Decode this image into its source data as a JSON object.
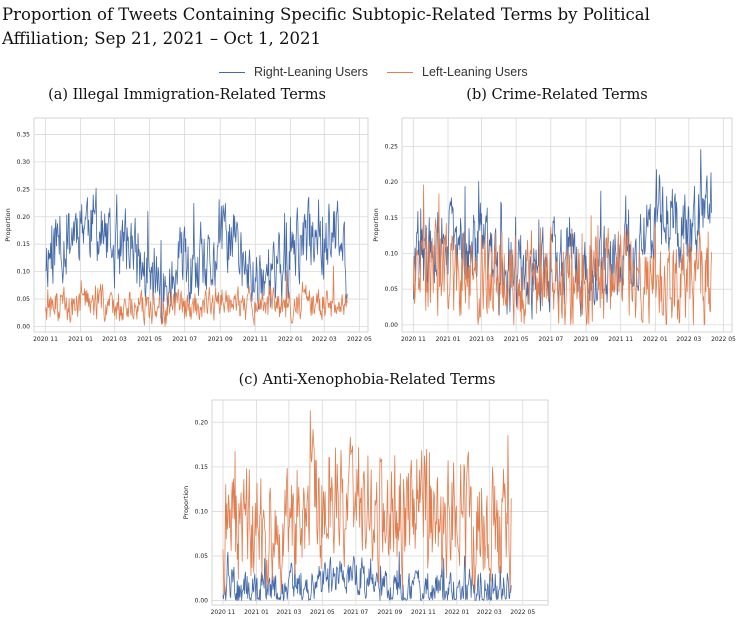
{
  "title": "Proportion of Tweets Containing Specific Subtopic-Related Terms by Political Affiliation; Sep 21, 2021 – Oct 1, 2021",
  "legend": [
    {
      "label": "Right-Leaning Users",
      "color": "#4469a8"
    },
    {
      "label": "Left-Leaning Users",
      "color": "#e27d4e"
    }
  ],
  "chart_data": [
    {
      "type": "line",
      "title": "(a) Illegal Immigration-Related Terms",
      "xlabel": "",
      "ylabel": "Proportion",
      "x_range": [
        "2020-11-01",
        "2022-04-10"
      ],
      "x_tick_labels": [
        "2020 11",
        "2021 01",
        "2021 03",
        "2021 05",
        "2021 07",
        "2021 09",
        "2021 11",
        "2022 01",
        "2022 03",
        "2022 05"
      ],
      "y_ticks": [
        0.0,
        0.05,
        0.1,
        0.15,
        0.2,
        0.25,
        0.3,
        0.35
      ],
      "y_tick_labels": [
        "0.00",
        "0.05",
        "0.10",
        "0.15",
        "0.20",
        "0.25",
        "0.30",
        "0.35"
      ],
      "ylim": [
        -0.01,
        0.38
      ],
      "grid": true,
      "series": [
        {
          "name": "Right-Leaning Users",
          "color": "#4469a8",
          "x": [
            "2020-11-01",
            "2020-11-20",
            "2020-12-10",
            "2021-01-01",
            "2021-01-20",
            "2021-02-10",
            "2021-03-01",
            "2021-03-20",
            "2021-04-10",
            "2021-05-01",
            "2021-05-20",
            "2021-06-10",
            "2021-06-25",
            "2021-07-01",
            "2021-07-20",
            "2021-08-10",
            "2021-09-01",
            "2021-09-20",
            "2021-10-10",
            "2021-10-25",
            "2021-11-10",
            "2021-12-01",
            "2021-12-20",
            "2022-01-10",
            "2022-02-01",
            "2022-02-20",
            "2022-03-01",
            "2022-03-20",
            "2022-04-10"
          ],
          "y": [
            0.13,
            0.15,
            0.16,
            0.2,
            0.19,
            0.16,
            0.13,
            0.15,
            0.12,
            0.08,
            0.07,
            0.07,
            0.12,
            0.1,
            0.08,
            0.09,
            0.15,
            0.17,
            0.11,
            0.08,
            0.1,
            0.09,
            0.1,
            0.14,
            0.16,
            0.19,
            0.15,
            0.17,
            0.11
          ]
        },
        {
          "name": "Left-Leaning Users",
          "color": "#e27d4e",
          "x": [
            "2020-11-01",
            "2020-12-10",
            "2021-01-20",
            "2021-03-01",
            "2021-04-10",
            "2021-05-20",
            "2021-07-01",
            "2021-08-10",
            "2021-09-20",
            "2021-11-01",
            "2021-12-10",
            "2022-01-20",
            "2022-03-01",
            "2022-04-10"
          ],
          "y": [
            0.04,
            0.035,
            0.045,
            0.04,
            0.035,
            0.03,
            0.035,
            0.04,
            0.045,
            0.04,
            0.035,
            0.04,
            0.045,
            0.03
          ]
        }
      ]
    },
    {
      "type": "line",
      "title": "(b) Crime-Related Terms",
      "xlabel": "",
      "ylabel": "Proportion",
      "x_range": [
        "2020-11-01",
        "2022-04-10"
      ],
      "x_tick_labels": [
        "2020 11",
        "2021 01",
        "2021 03",
        "2021 05",
        "2021 07",
        "2021 09",
        "2021 11",
        "2022 01",
        "2022 03",
        "2022 05"
      ],
      "y_ticks": [
        0.0,
        0.05,
        0.1,
        0.15,
        0.2,
        0.25
      ],
      "y_tick_labels": [
        "0.00",
        "0.05",
        "0.10",
        "0.15",
        "0.20",
        "0.25"
      ],
      "ylim": [
        -0.01,
        0.29
      ],
      "grid": true,
      "series": [
        {
          "name": "Right-Leaning Users",
          "color": "#4469a8",
          "x": [
            "2020-11-01",
            "2020-12-01",
            "2021-01-01",
            "2021-02-01",
            "2021-03-01",
            "2021-04-01",
            "2021-05-01",
            "2021-06-01",
            "2021-07-01",
            "2021-08-01",
            "2021-09-01",
            "2021-10-01",
            "2021-11-01",
            "2021-12-01",
            "2022-01-01",
            "2022-02-01",
            "2022-03-01",
            "2022-04-10"
          ],
          "y": [
            0.06,
            0.1,
            0.12,
            0.11,
            0.1,
            0.08,
            0.07,
            0.07,
            0.08,
            0.09,
            0.08,
            0.07,
            0.1,
            0.08,
            0.17,
            0.15,
            0.14,
            0.18
          ]
        },
        {
          "name": "Left-Leaning Users",
          "color": "#e27d4e",
          "x": [
            "2020-11-01",
            "2020-12-01",
            "2021-01-01",
            "2021-02-01",
            "2021-03-01",
            "2021-04-01",
            "2021-05-01",
            "2021-06-01",
            "2021-07-01",
            "2021-08-01",
            "2021-09-01",
            "2021-10-01",
            "2021-11-01",
            "2021-12-01",
            "2022-01-01",
            "2022-02-01",
            "2022-03-01",
            "2022-04-10"
          ],
          "y": [
            0.07,
            0.08,
            0.07,
            0.06,
            0.07,
            0.06,
            0.06,
            0.07,
            0.07,
            0.06,
            0.07,
            0.06,
            0.07,
            0.06,
            0.05,
            0.06,
            0.06,
            0.07
          ]
        }
      ]
    },
    {
      "type": "line",
      "title": "(c) Anti-Xenophobia-Related Terms",
      "xlabel": "",
      "ylabel": "Proportion",
      "x_range": [
        "2020-11-01",
        "2022-04-10"
      ],
      "x_tick_labels": [
        "2020 11",
        "2021 01",
        "2021 03",
        "2021 05",
        "2021 07",
        "2021 09",
        "2021 11",
        "2022 01",
        "2022 03",
        "2022 05"
      ],
      "y_ticks": [
        0.0,
        0.05,
        0.1,
        0.15,
        0.2
      ],
      "y_tick_labels": [
        "0.00",
        "0.05",
        "0.10",
        "0.15",
        "0.20"
      ],
      "ylim": [
        -0.005,
        0.225
      ],
      "grid": true,
      "series": [
        {
          "name": "Right-Leaning Users",
          "color": "#4469a8",
          "x": [
            "2020-11-01",
            "2020-12-01",
            "2021-01-01",
            "2021-02-01",
            "2021-03-01",
            "2021-04-01",
            "2021-05-01",
            "2021-06-01",
            "2021-07-01",
            "2021-08-01",
            "2021-09-01",
            "2021-10-01",
            "2021-11-01",
            "2021-12-01",
            "2022-01-01",
            "2022-02-01",
            "2022-03-01",
            "2022-04-10"
          ],
          "y": [
            0.015,
            0.012,
            0.014,
            0.012,
            0.018,
            0.02,
            0.025,
            0.03,
            0.032,
            0.02,
            0.015,
            0.012,
            0.014,
            0.013,
            0.012,
            0.014,
            0.012,
            0.01
          ]
        },
        {
          "name": "Left-Leaning Users",
          "color": "#e27d4e",
          "x": [
            "2020-11-01",
            "2020-12-01",
            "2021-01-01",
            "2021-02-01",
            "2021-03-01",
            "2021-04-01",
            "2021-05-01",
            "2021-06-01",
            "2021-07-01",
            "2021-08-01",
            "2021-09-01",
            "2021-10-01",
            "2021-11-01",
            "2021-12-01",
            "2022-01-01",
            "2022-02-01",
            "2022-03-01",
            "2022-04-10"
          ],
          "y": [
            0.08,
            0.085,
            0.08,
            0.09,
            0.095,
            0.1,
            0.11,
            0.12,
            0.13,
            0.11,
            0.1,
            0.095,
            0.1,
            0.09,
            0.1,
            0.09,
            0.09,
            0.085
          ]
        }
      ]
    }
  ]
}
